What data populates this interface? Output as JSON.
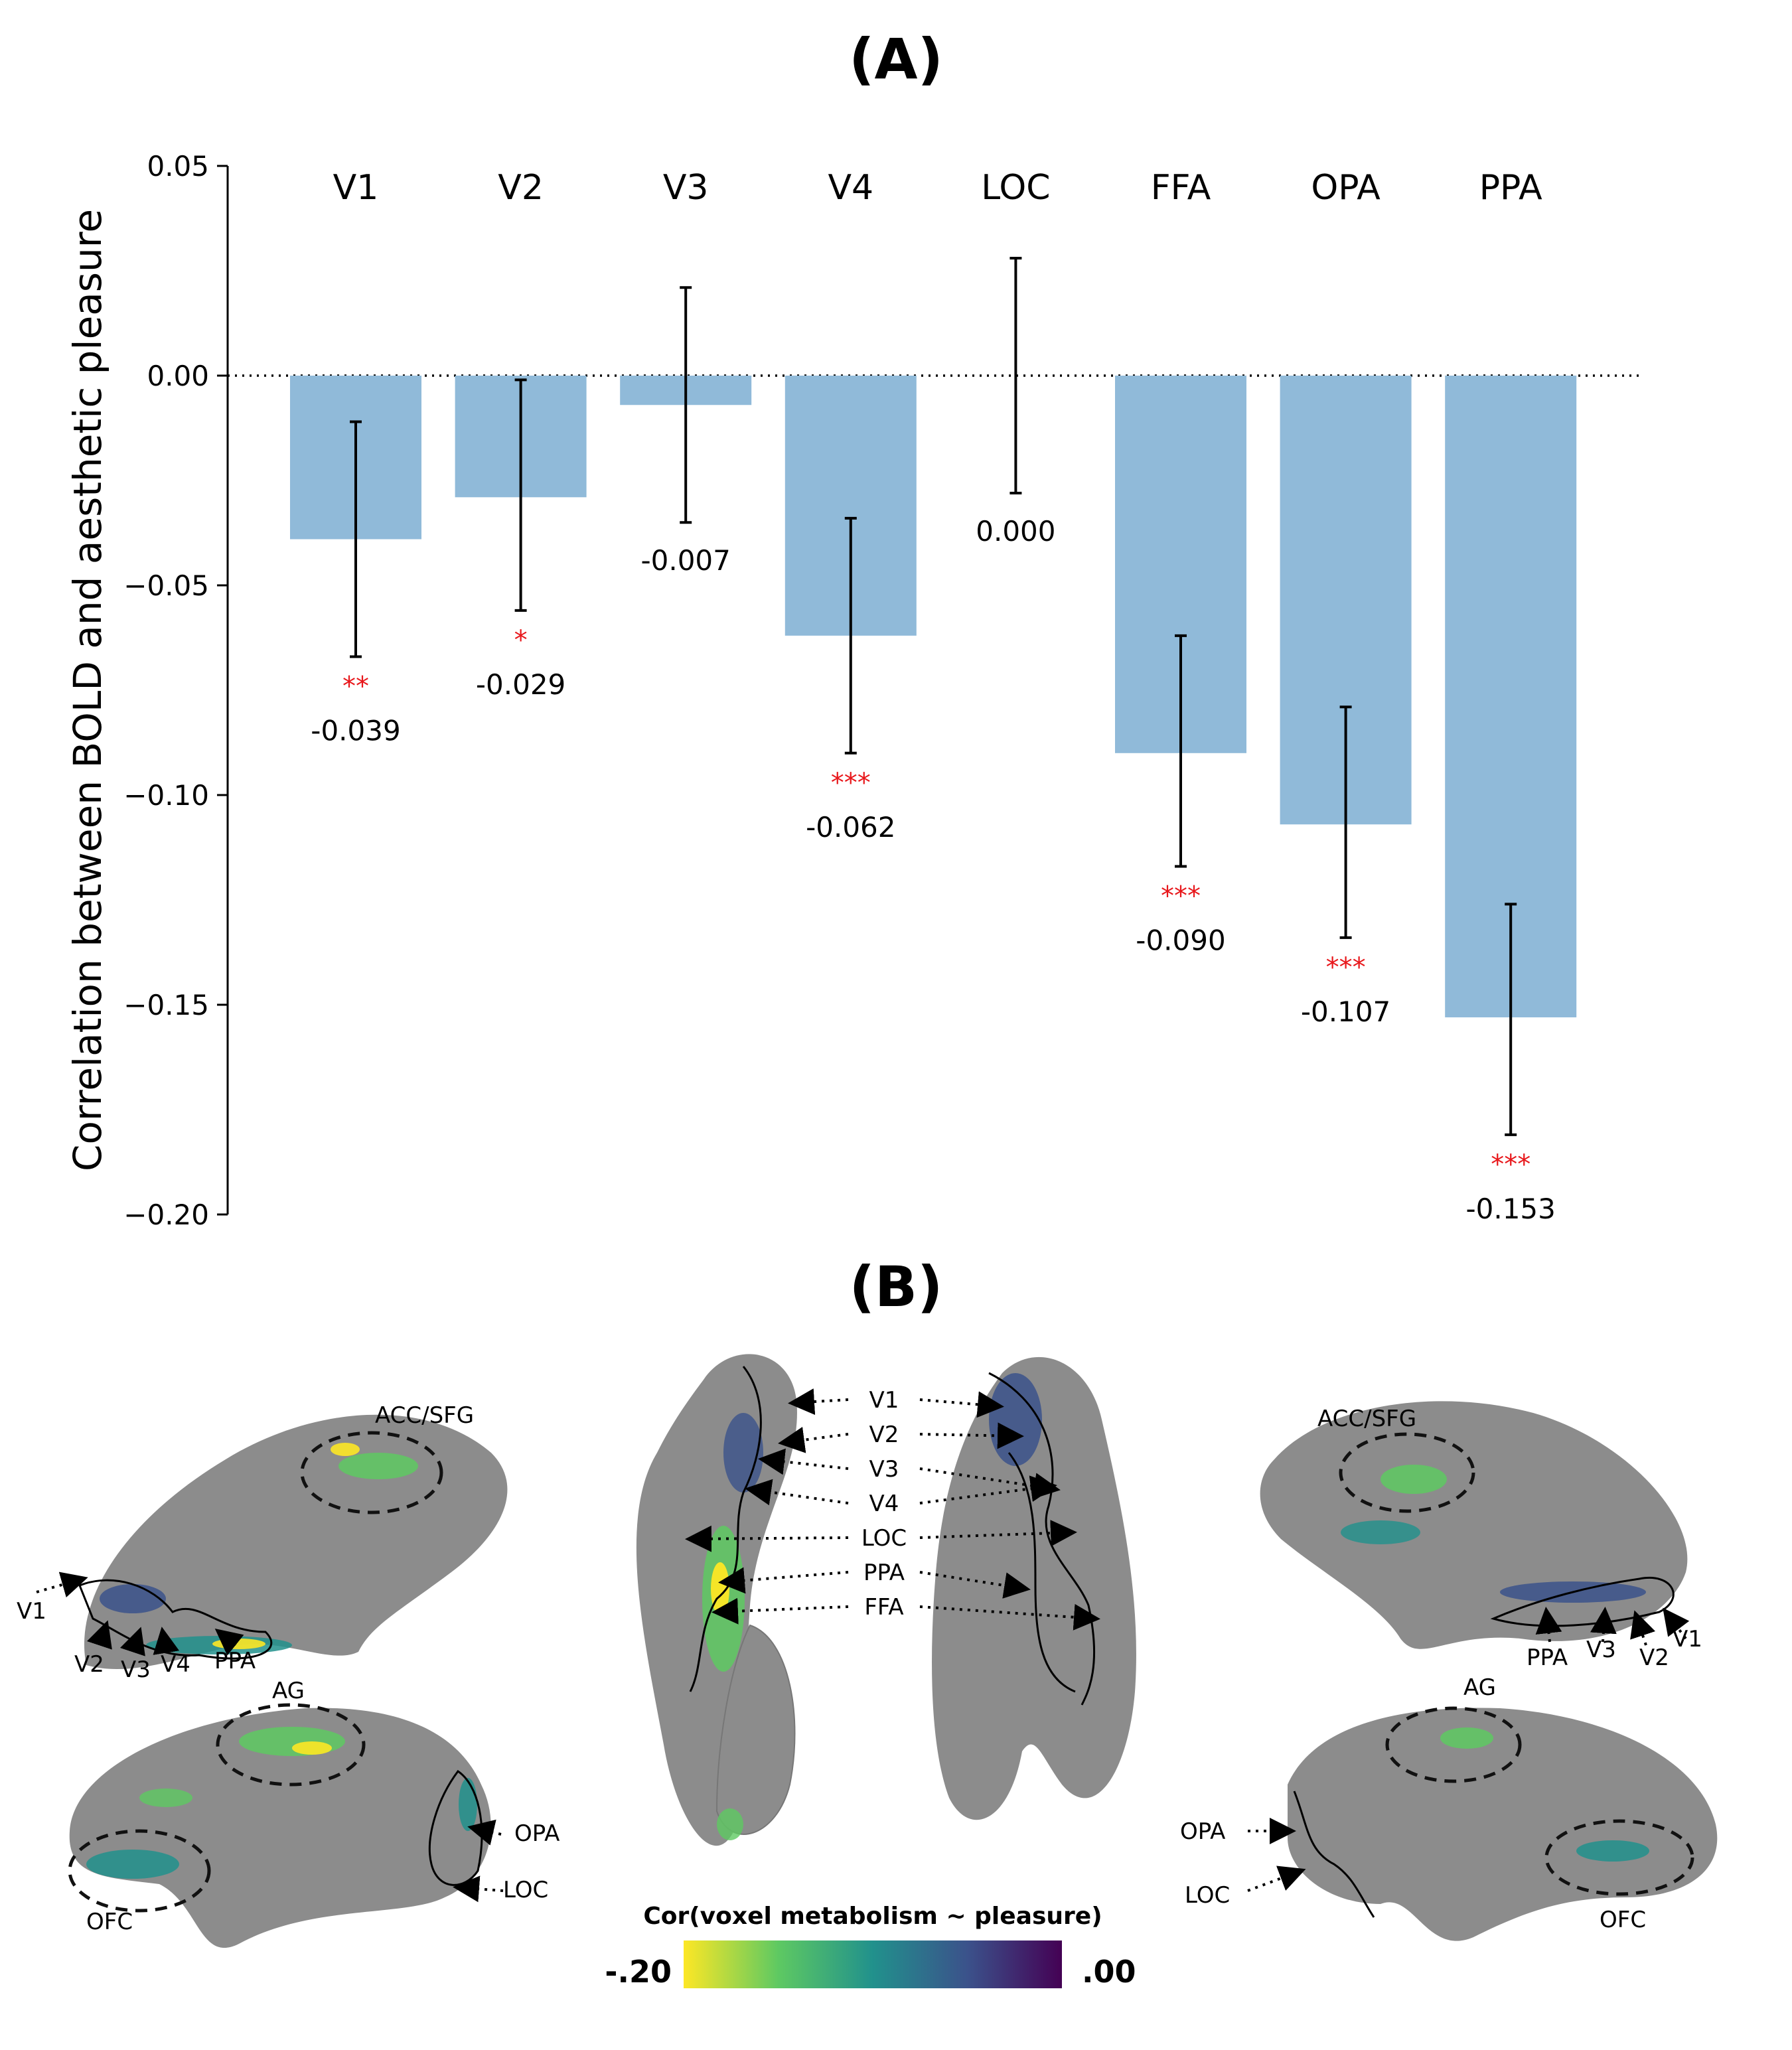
{
  "panels": {
    "a_label": "(A)",
    "b_label": "(B)"
  },
  "chart_data": {
    "type": "bar",
    "categories": [
      "V1",
      "V2",
      "V3",
      "V4",
      "LOC",
      "FFA",
      "OPA",
      "PPA"
    ],
    "values": [
      -0.039,
      -0.029,
      -0.007,
      -0.062,
      0.0,
      -0.09,
      -0.107,
      -0.153
    ],
    "value_labels": [
      "-0.039",
      "-0.029",
      "-0.007",
      "-0.062",
      "0.000",
      "-0.090",
      "-0.107",
      "-0.153"
    ],
    "error_low": [
      -0.067,
      -0.056,
      -0.035,
      -0.09,
      -0.028,
      -0.117,
      -0.134,
      -0.181
    ],
    "error_high": [
      -0.011,
      -0.001,
      0.021,
      -0.034,
      0.028,
      -0.062,
      -0.079,
      -0.126
    ],
    "significance": [
      "**",
      "*",
      "",
      "***",
      "",
      "***",
      "***",
      "***"
    ],
    "ylabel": "Correlation between BOLD and aesthetic pleasure",
    "ylim": [
      -0.2,
      0.05
    ],
    "yticks": [
      0.05,
      0.0,
      -0.05,
      -0.1,
      -0.15,
      -0.2
    ],
    "ytick_labels": [
      "0.05",
      "0.00",
      "−0.05",
      "−0.10",
      "−0.15",
      "−0.20"
    ],
    "bar_color": "#90bad9",
    "significance_color": "#e8171b",
    "zero_line": "dotted"
  },
  "brain_maps": {
    "colorbar": {
      "title": "Cor(voxel metabolism ~ pleasure)",
      "min_label": "-.20",
      "max_label": ".00",
      "colormap": "viridis"
    },
    "left_medial_labels": [
      "ACC/SFG",
      "V1",
      "V2",
      "V3",
      "V4",
      "PPA"
    ],
    "left_lateral_labels": [
      "AG",
      "OPA",
      "OFC",
      "LOC"
    ],
    "ventral_labels": [
      "V1",
      "V2",
      "V3",
      "V4",
      "LOC",
      "PPA",
      "FFA"
    ],
    "right_medial_labels": [
      "ACC/SFG",
      "PPA",
      "V3",
      "V2",
      "V1"
    ],
    "right_lateral_labels": [
      "AG",
      "OPA",
      "LOC",
      "OFC"
    ]
  }
}
